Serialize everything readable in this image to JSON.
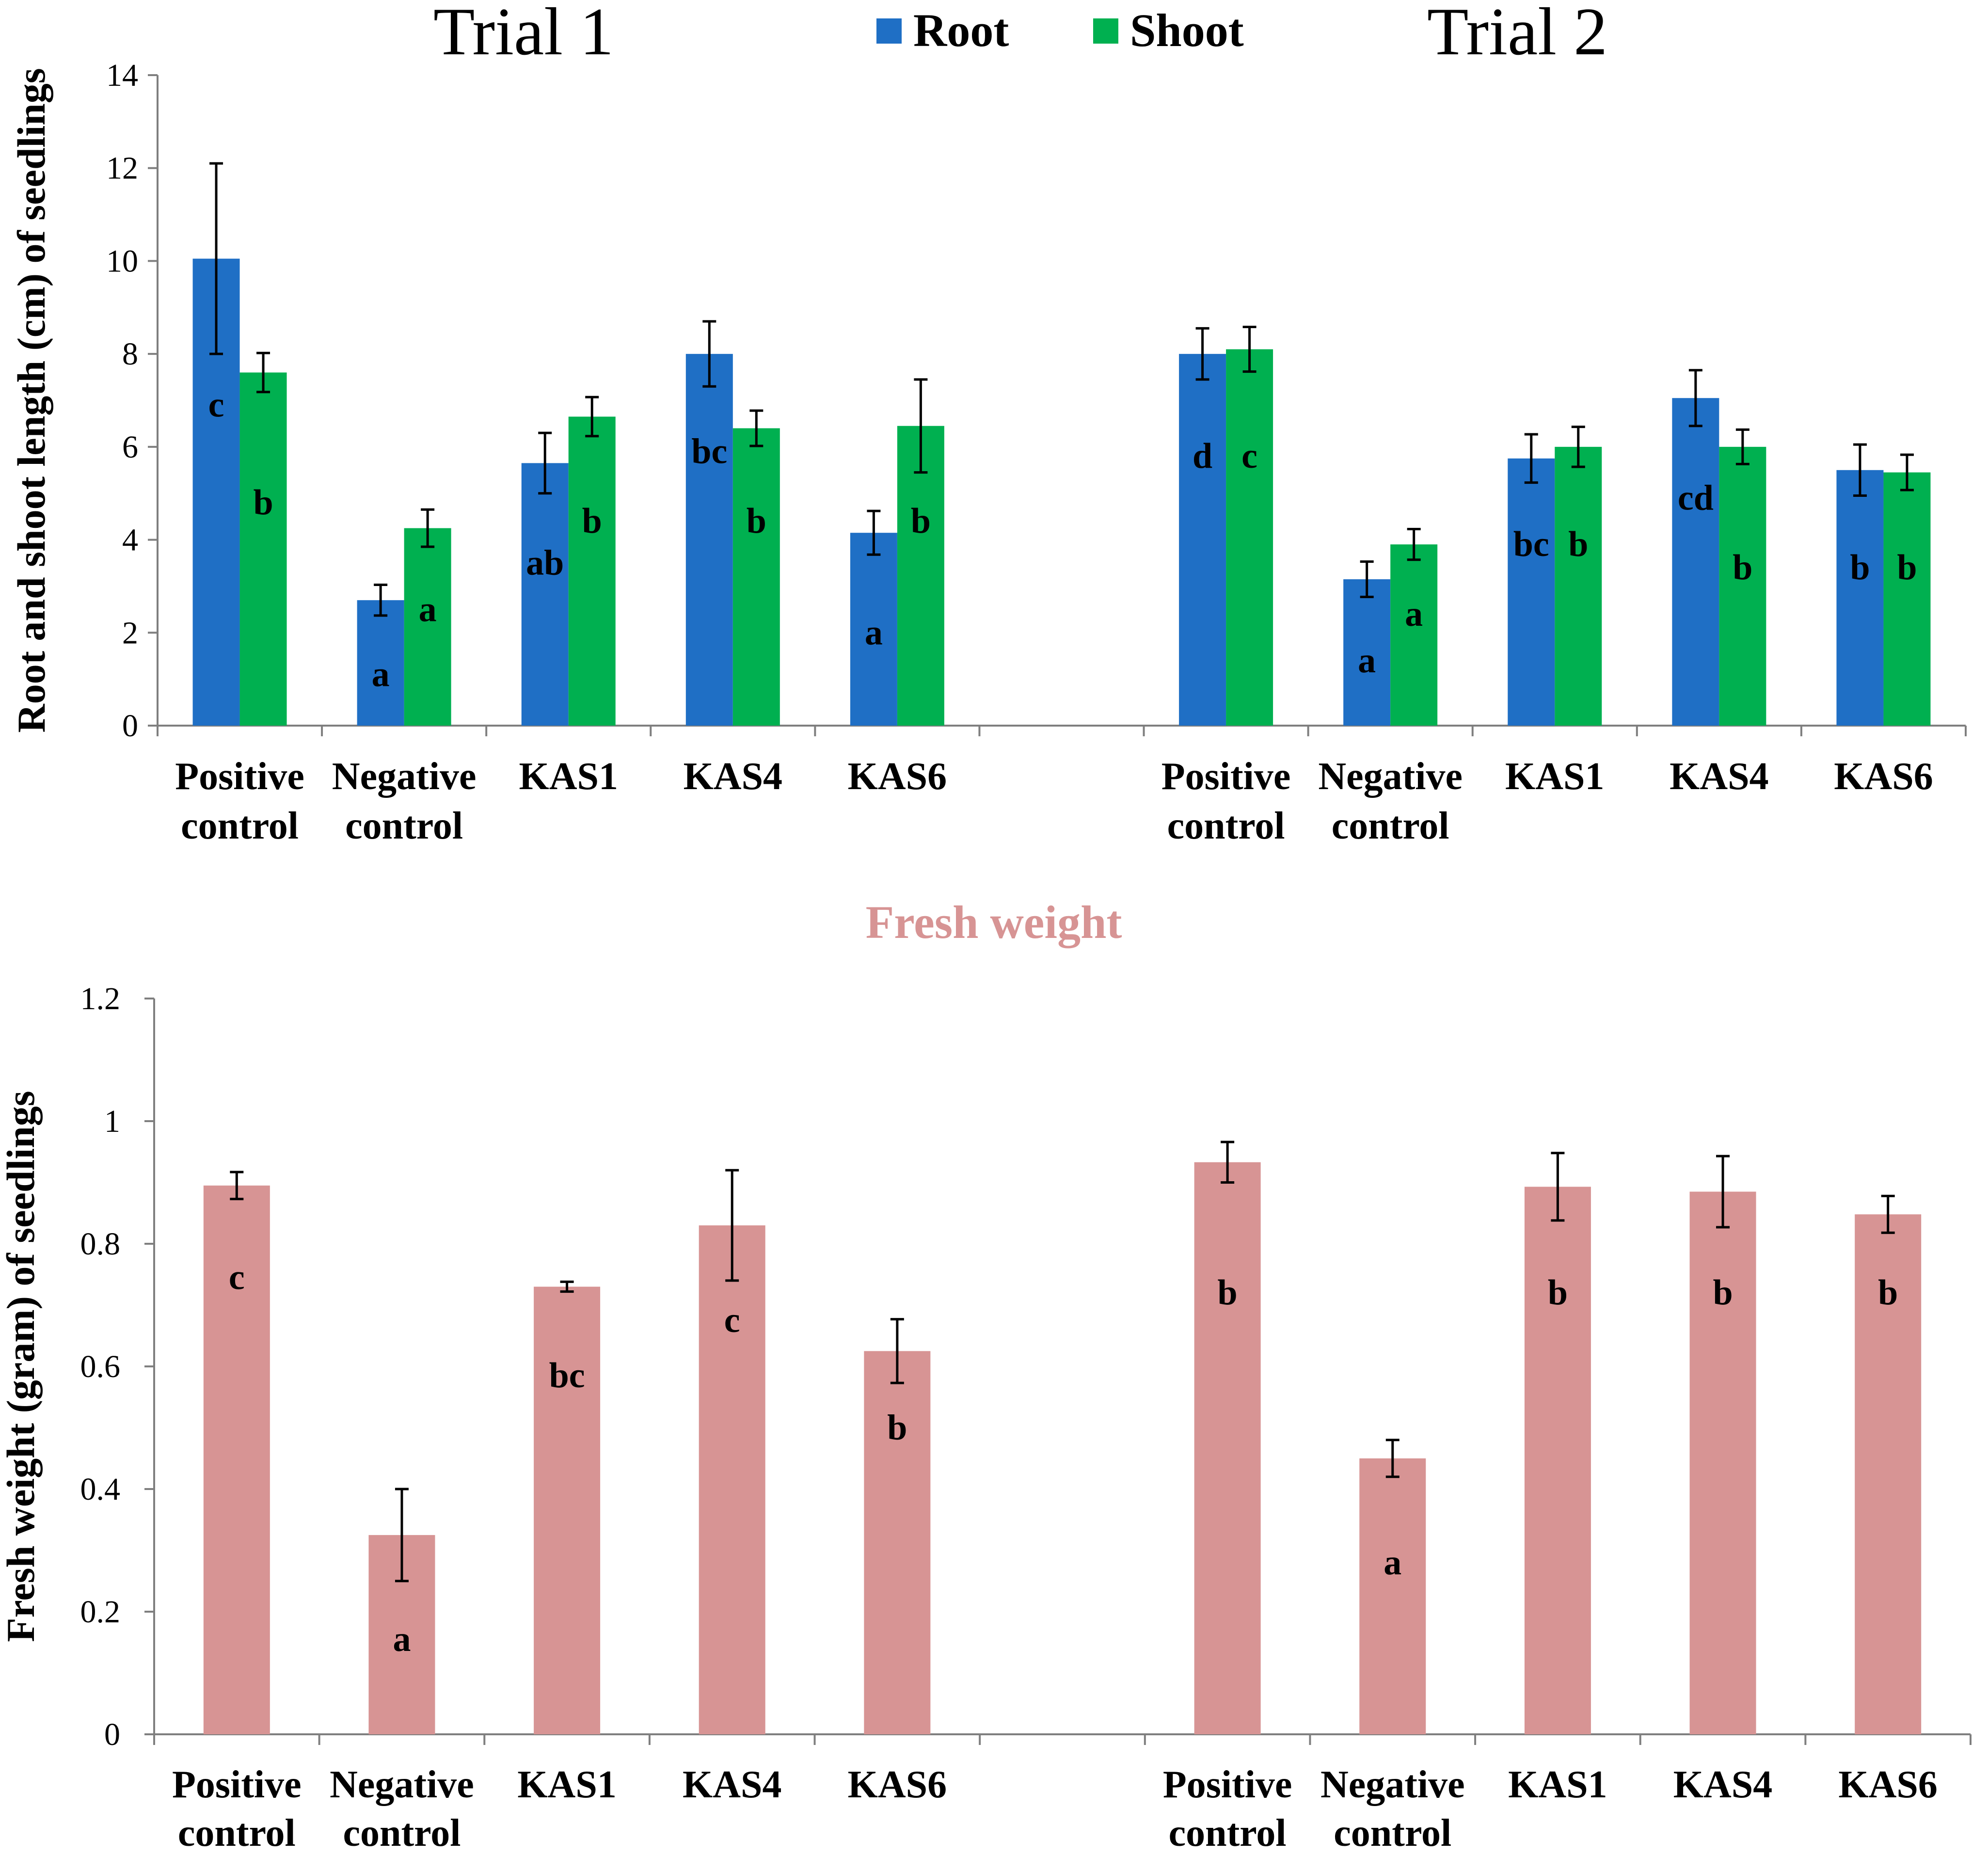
{
  "chart_data": [
    {
      "type": "bar",
      "ylabel": "Root and shoot length (cm) of seedlings",
      "ylim": [
        0,
        14
      ],
      "yticks": [
        0,
        2,
        4,
        6,
        8,
        10,
        12,
        14
      ],
      "legend": {
        "placement": "top-center",
        "entries": [
          "Root",
          "Shoot"
        ]
      },
      "colors": {
        "Root": "#1f6fc5",
        "Shoot": "#00b050"
      },
      "groups": [
        {
          "title": "Trial 1",
          "categories": [
            {
              "line1": "Positive",
              "line2": "control"
            },
            {
              "line1": "Negative",
              "line2": "control"
            },
            {
              "line1": "KAS1",
              "line2": ""
            },
            {
              "line1": "KAS4",
              "line2": ""
            },
            {
              "line1": "KAS6",
              "line2": ""
            }
          ],
          "series": [
            {
              "name": "Root",
              "values": [
                10.05,
                2.7,
                5.65,
                8.0,
                4.15
              ],
              "errors": [
                2.05,
                0.33,
                0.65,
                0.7,
                0.47
              ],
              "letters": [
                "c",
                "a",
                "ab",
                "bc",
                "a"
              ],
              "letter_y": [
                6.9,
                1.1,
                3.5,
                5.9,
                2.0
              ]
            },
            {
              "name": "Shoot",
              "values": [
                7.6,
                4.25,
                6.65,
                6.4,
                6.45
              ],
              "errors": [
                0.42,
                0.4,
                0.42,
                0.38,
                1.0
              ],
              "letters": [
                "b",
                "a",
                "b",
                "b",
                "b"
              ],
              "letter_y": [
                4.8,
                2.5,
                4.4,
                4.4,
                4.4
              ]
            }
          ]
        },
        {
          "title": "Trial 2",
          "categories": [
            {
              "line1": "Positive",
              "line2": "control"
            },
            {
              "line1": "Negative",
              "line2": "control"
            },
            {
              "line1": "KAS1",
              "line2": ""
            },
            {
              "line1": "KAS4",
              "line2": ""
            },
            {
              "line1": "KAS6",
              "line2": ""
            }
          ],
          "series": [
            {
              "name": "Root",
              "values": [
                8.0,
                3.15,
                5.75,
                7.05,
                5.5
              ],
              "errors": [
                0.55,
                0.38,
                0.52,
                0.6,
                0.55
              ],
              "letters": [
                "d",
                "a",
                "bc",
                "cd",
                "b"
              ],
              "letter_y": [
                5.8,
                1.4,
                3.9,
                4.9,
                3.4
              ]
            },
            {
              "name": "Shoot",
              "values": [
                8.1,
                3.9,
                6.0,
                6.0,
                5.45
              ],
              "errors": [
                0.48,
                0.33,
                0.43,
                0.37,
                0.38
              ],
              "letters": [
                "c",
                "a",
                "b",
                "b",
                "b"
              ],
              "letter_y": [
                5.8,
                2.4,
                3.9,
                3.4,
                3.4
              ]
            }
          ]
        }
      ]
    },
    {
      "type": "bar",
      "title": "Fresh weight",
      "title_color": "#d79494",
      "ylabel": "Fresh weight (gram) of  seedlings",
      "ylim": [
        0,
        1.2
      ],
      "yticks": [
        "0",
        "0.2",
        "0.4",
        "0.6",
        "0.8",
        "1",
        "1.2"
      ],
      "bar_color": "#d79494",
      "groups": [
        {
          "categories": [
            {
              "line1": "Positive",
              "line2": "control"
            },
            {
              "line1": "Negative",
              "line2": "control"
            },
            {
              "line1": "KAS1",
              "line2": ""
            },
            {
              "line1": "KAS4",
              "line2": ""
            },
            {
              "line1": "KAS6",
              "line2": ""
            }
          ],
          "values": [
            0.895,
            0.325,
            0.73,
            0.83,
            0.625
          ],
          "errors": [
            0.022,
            0.075,
            0.008,
            0.09,
            0.052
          ],
          "letters": [
            "c",
            "a",
            "bc",
            "c",
            "b"
          ],
          "letter_y": [
            0.745,
            0.155,
            0.585,
            0.675,
            0.5
          ]
        },
        {
          "categories": [
            {
              "line1": "Positive",
              "line2": "control"
            },
            {
              "line1": "Negative",
              "line2": "control"
            },
            {
              "line1": "KAS1",
              "line2": ""
            },
            {
              "line1": "KAS4",
              "line2": ""
            },
            {
              "line1": "KAS6",
              "line2": ""
            }
          ],
          "values": [
            0.933,
            0.45,
            0.893,
            0.885,
            0.848
          ],
          "errors": [
            0.033,
            0.03,
            0.055,
            0.058,
            0.03
          ],
          "letters": [
            "b",
            "a",
            "b",
            "b",
            "b"
          ],
          "letter_y": [
            0.72,
            0.28,
            0.72,
            0.72,
            0.72
          ]
        }
      ]
    }
  ]
}
